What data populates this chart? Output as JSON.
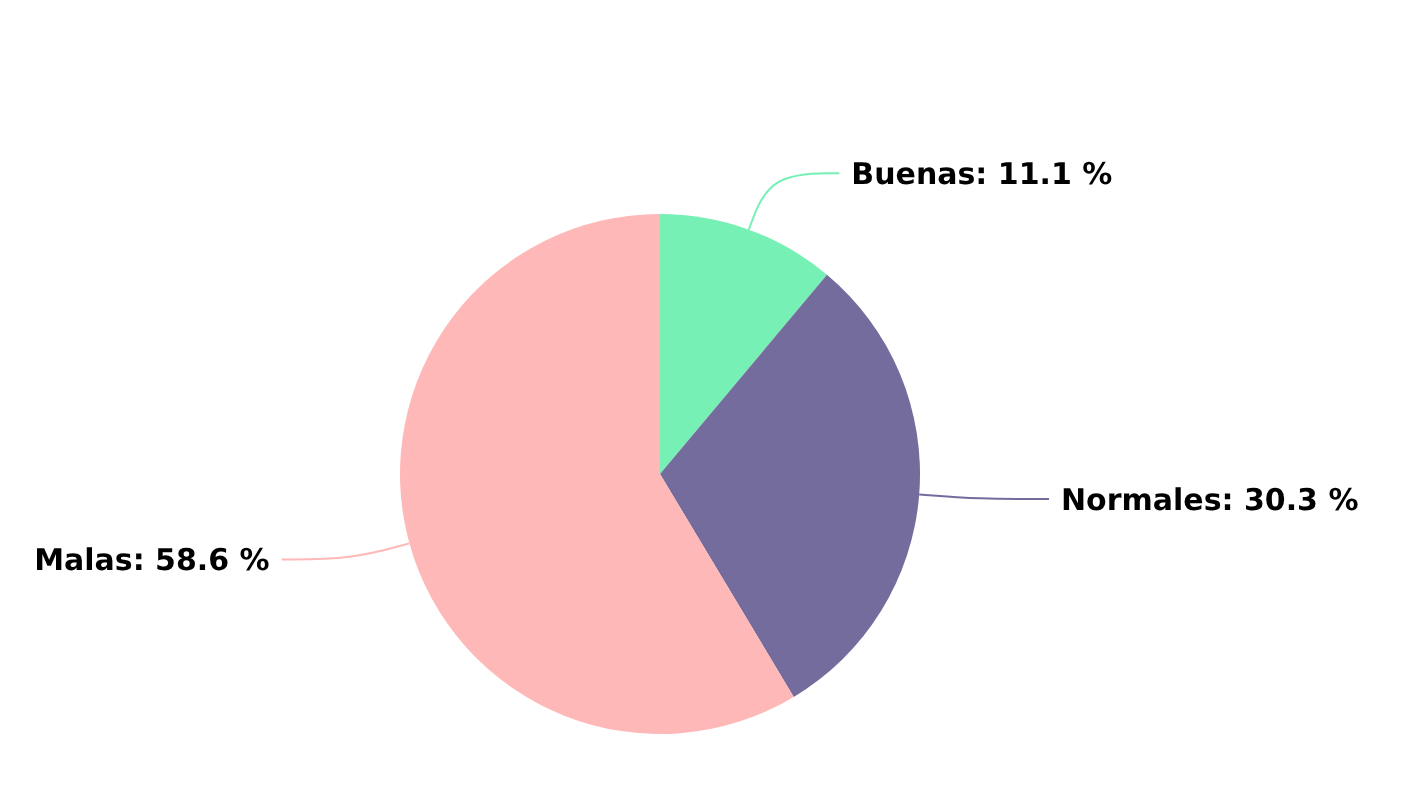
{
  "chart_data": {
    "type": "pie",
    "categories": [
      "Buenas",
      "Normales",
      "Malas"
    ],
    "values": [
      11.1,
      30.3,
      58.6
    ],
    "value_labels": [
      "11.1 %",
      "30.3 %",
      "58.6 %"
    ],
    "colors": [
      "#76f0b4",
      "#736c9c",
      "#ffb8b8"
    ]
  }
}
